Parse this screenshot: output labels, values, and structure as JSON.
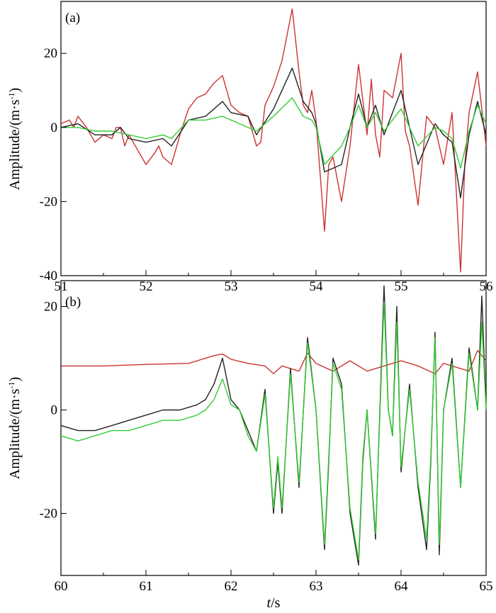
{
  "chart_data": [
    {
      "type": "line",
      "panel_label": "(a)",
      "xlabel": "",
      "ylabel": "Amplitude/(m·s",
      "ylabel_sup": "-1",
      "ylabel_close": ")",
      "xlim": [
        51,
        56
      ],
      "ylim": [
        -40,
        34
      ],
      "xticks": [
        51,
        52,
        53,
        54,
        55,
        56
      ],
      "yticks": [
        -40,
        -20,
        0,
        20
      ],
      "grid": false,
      "series": [
        {
          "color": "#cc3333",
          "x": [
            51.0,
            51.1,
            51.15,
            51.2,
            51.3,
            51.4,
            51.5,
            51.6,
            51.65,
            51.7,
            51.75,
            51.8,
            51.9,
            52.0,
            52.1,
            52.15,
            52.2,
            52.3,
            52.4,
            52.5,
            52.6,
            52.7,
            52.8,
            52.9,
            53.0,
            53.1,
            53.2,
            53.3,
            53.35,
            53.4,
            53.5,
            53.6,
            53.72,
            53.8,
            53.85,
            53.9,
            53.95,
            54.0,
            54.1,
            54.15,
            54.2,
            54.3,
            54.4,
            54.5,
            54.6,
            54.65,
            54.7,
            54.75,
            54.8,
            54.9,
            55.0,
            55.05,
            55.1,
            55.2,
            55.3,
            55.4,
            55.45,
            55.5,
            55.6,
            55.7,
            55.75,
            55.8,
            55.9,
            56.0
          ],
          "y": [
            1,
            2,
            0,
            3,
            0,
            -4,
            -2,
            -3,
            0,
            0,
            -5,
            -2,
            -6,
            -10,
            -7,
            -5,
            -8,
            -10,
            -2,
            5,
            8,
            9,
            12,
            14,
            6,
            4,
            3,
            -5,
            -4,
            6,
            11,
            18,
            32,
            15,
            6,
            4,
            10,
            2,
            -28,
            -10,
            -8,
            -20,
            -5,
            17,
            -2,
            13,
            -2,
            -8,
            10,
            8,
            20,
            -1,
            -5,
            -21,
            3,
            0,
            -5,
            -10,
            4,
            -39,
            -10,
            4,
            15,
            -5
          ]
        },
        {
          "color": "#222222",
          "x": [
            51.0,
            51.2,
            51.4,
            51.6,
            51.7,
            51.8,
            52.0,
            52.2,
            52.3,
            52.5,
            52.7,
            52.9,
            53.0,
            53.2,
            53.3,
            53.5,
            53.72,
            53.85,
            53.95,
            54.0,
            54.1,
            54.3,
            54.4,
            54.5,
            54.6,
            54.7,
            54.8,
            55.0,
            55.2,
            55.4,
            55.5,
            55.6,
            55.7,
            55.8,
            55.9,
            56.0
          ],
          "y": [
            0,
            1,
            -2,
            -2,
            0,
            -3,
            -4,
            -3,
            -5,
            2,
            3,
            7,
            4,
            3,
            -2,
            5,
            16,
            7,
            4,
            1,
            -12,
            -10,
            0,
            9,
            0,
            6,
            -2,
            10,
            -10,
            1,
            -2,
            -4,
            -19,
            -2,
            7,
            -2
          ]
        },
        {
          "color": "#33cc33",
          "x": [
            51.0,
            51.2,
            51.4,
            51.6,
            51.8,
            52.0,
            52.2,
            52.3,
            52.5,
            52.7,
            52.9,
            53.0,
            53.3,
            53.5,
            53.72,
            53.85,
            53.95,
            54.0,
            54.1,
            54.3,
            54.4,
            54.5,
            54.6,
            54.7,
            54.8,
            55.0,
            55.2,
            55.4,
            55.5,
            55.6,
            55.7,
            55.8,
            55.9,
            56.0
          ],
          "y": [
            0,
            0,
            -1,
            -1,
            -2,
            -3,
            -2,
            -3,
            2,
            2,
            3,
            2,
            -1,
            3,
            8,
            3,
            2,
            0,
            -10,
            -5,
            0,
            6,
            0,
            4,
            -1,
            5,
            -5,
            0,
            -1,
            -3,
            -11,
            -1,
            6,
            1
          ]
        }
      ]
    },
    {
      "type": "line",
      "panel_label": "(b)",
      "xlabel_italic": "t",
      "xlabel": "/s",
      "ylabel": "Amplitude/(m·s",
      "ylabel_sup": "-1",
      "ylabel_close": ")",
      "xlim": [
        60,
        65
      ],
      "ylim": [
        -32,
        25
      ],
      "xticks": [
        60,
        61,
        62,
        63,
        64,
        65
      ],
      "yticks": [
        -20,
        0,
        20
      ],
      "grid": false,
      "series": [
        {
          "color": "#cc3333",
          "x": [
            60.0,
            60.5,
            61.0,
            61.5,
            61.8,
            61.9,
            62.0,
            62.2,
            62.4,
            62.5,
            62.6,
            62.8,
            62.9,
            63.0,
            63.2,
            63.4,
            63.5,
            63.6,
            63.8,
            64.0,
            64.2,
            64.4,
            64.5,
            64.6,
            64.8,
            64.9,
            65.0
          ],
          "y": [
            8.5,
            8.5,
            8.8,
            9.0,
            10.5,
            10.8,
            9.8,
            9.0,
            8.5,
            7.0,
            8.5,
            7.5,
            11,
            9,
            7.5,
            9.5,
            8.5,
            7.5,
            8.5,
            9.5,
            8.5,
            7.0,
            9.0,
            8.5,
            7.5,
            11.5,
            9.5
          ]
        },
        {
          "color": "#222222",
          "x": [
            60.0,
            60.2,
            60.4,
            60.6,
            60.8,
            61.0,
            61.2,
            61.4,
            61.6,
            61.7,
            61.8,
            61.9,
            62.0,
            62.1,
            62.2,
            62.3,
            62.4,
            62.5,
            62.55,
            62.6,
            62.7,
            62.8,
            62.9,
            63.0,
            63.1,
            63.15,
            63.2,
            63.3,
            63.4,
            63.5,
            63.55,
            63.6,
            63.7,
            63.8,
            63.85,
            63.9,
            63.95,
            64.0,
            64.1,
            64.2,
            64.3,
            64.35,
            64.4,
            64.45,
            64.5,
            64.6,
            64.7,
            64.8,
            64.9,
            64.95,
            65.0
          ],
          "y": [
            -3,
            -4,
            -4,
            -3,
            -2,
            -1,
            0,
            0,
            1,
            2,
            5,
            10,
            2,
            0,
            -4,
            -8,
            4,
            -20,
            -10,
            -20,
            8,
            -15,
            14,
            0,
            -27,
            -10,
            10,
            5,
            -20,
            -30,
            -10,
            0,
            -25,
            24,
            0,
            -5,
            20,
            -12,
            5,
            -15,
            -27,
            -10,
            15,
            -28,
            0,
            10,
            -15,
            12,
            0,
            22,
            0
          ]
        },
        {
          "color": "#33cc33",
          "x": [
            60.0,
            60.2,
            60.4,
            60.6,
            60.8,
            61.0,
            61.2,
            61.4,
            61.6,
            61.7,
            61.8,
            61.9,
            62.0,
            62.1,
            62.2,
            62.3,
            62.4,
            62.5,
            62.55,
            62.6,
            62.7,
            62.8,
            62.9,
            63.0,
            63.1,
            63.15,
            63.2,
            63.3,
            63.4,
            63.5,
            63.55,
            63.6,
            63.7,
            63.8,
            63.85,
            63.9,
            63.95,
            64.0,
            64.1,
            64.2,
            64.3,
            64.35,
            64.4,
            64.45,
            64.5,
            64.6,
            64.7,
            64.8,
            64.9,
            64.95,
            65.0
          ],
          "y": [
            -5,
            -6,
            -5,
            -4,
            -4,
            -3,
            -2,
            -2,
            -1,
            0,
            2,
            6,
            1,
            0,
            -5,
            -8,
            3,
            -19,
            -9,
            -19,
            7,
            -14,
            13,
            0,
            -26,
            -9,
            9,
            4,
            -19,
            -29,
            -9,
            0,
            -24,
            21,
            0,
            -5,
            17,
            -11,
            4,
            -14,
            -25,
            -9,
            14,
            -26,
            0,
            9,
            -15,
            11,
            0,
            17,
            0
          ]
        }
      ]
    }
  ]
}
